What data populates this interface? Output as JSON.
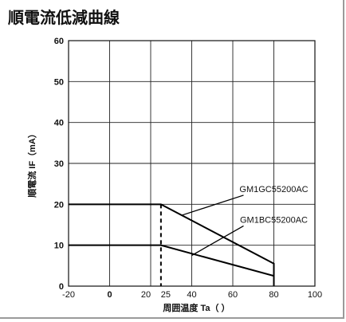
{
  "title": "順電流低減曲線",
  "chart_data": {
    "type": "line",
    "title": "順電流低減曲線",
    "xlabel": "周囲温度 Ta（ ）",
    "ylabel": "順電流 IF（mA）",
    "xlim": [
      -20,
      100
    ],
    "ylim": [
      0,
      60
    ],
    "grid": true,
    "x_ticks": [
      {
        "value": -20,
        "label": "-20"
      },
      {
        "value": 0,
        "label": "0"
      },
      {
        "value": 20,
        "label": "20"
      },
      {
        "value": 25,
        "label": "25"
      },
      {
        "value": 40,
        "label": "40"
      },
      {
        "value": 60,
        "label": "60"
      },
      {
        "value": 80,
        "label": "80"
      },
      {
        "value": 100,
        "label": "100"
      }
    ],
    "y_ticks": [
      0,
      10,
      20,
      30,
      40,
      50,
      60
    ],
    "reference_line_x": 25,
    "series": [
      {
        "name": "GM1GC55200AC",
        "x": [
          -20,
          25,
          80,
          80
        ],
        "y": [
          20,
          20,
          5.5,
          0
        ]
      },
      {
        "name": "GM1BC55200AC",
        "x": [
          -20,
          25,
          80,
          80
        ],
        "y": [
          10,
          10,
          2.5,
          0
        ]
      }
    ],
    "annotations": [
      {
        "text": "GM1GC55200AC",
        "x": 80,
        "y": 23,
        "arrow_to": [
          35,
          17.3
        ]
      },
      {
        "text": "GM1BC55200AC",
        "x": 80,
        "y": 15.5,
        "arrow_to": [
          40,
          7.5
        ]
      }
    ]
  }
}
